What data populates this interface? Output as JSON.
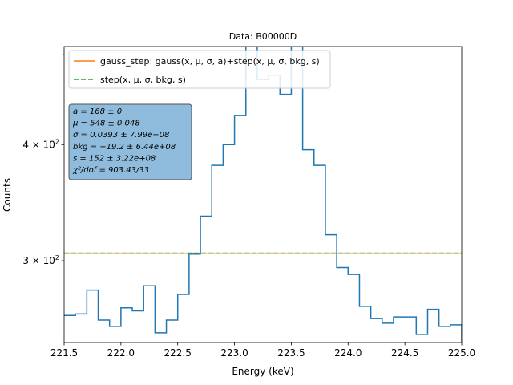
{
  "chart_data": {
    "type": "line",
    "title": "Data: B00000D",
    "xlabel": "Energy (keV)",
    "ylabel": "Counts",
    "y_scale": "log",
    "xlim": [
      221.5,
      225.0
    ],
    "ylim": [
      245,
      510
    ],
    "x_ticks": [
      {
        "value": 221.5,
        "label": "221.5"
      },
      {
        "value": 222.0,
        "label": "222.0"
      },
      {
        "value": 222.5,
        "label": "222.5"
      },
      {
        "value": 223.0,
        "label": "223.0"
      },
      {
        "value": 223.5,
        "label": "223.5"
      },
      {
        "value": 224.0,
        "label": "224.0"
      },
      {
        "value": 224.5,
        "label": "224.5"
      },
      {
        "value": 225.0,
        "label": "225.0"
      }
    ],
    "y_ticks": [
      {
        "value": 300,
        "base": "3",
        "exp": "2"
      },
      {
        "value": 400,
        "base": "4",
        "exp": "2"
      }
    ],
    "y_minor_ticks": [
      500
    ],
    "histogram": {
      "name": "Data",
      "color": "#1f77b4",
      "bin_width": 0.1,
      "x_start": 221.5,
      "counts": [
        262,
        263,
        279,
        259,
        255,
        267,
        265,
        282,
        251,
        259,
        276,
        305,
        335,
        380,
        400,
        430,
        550,
        470,
        475,
        453,
        555,
        395,
        380,
        320,
        295,
        290,
        268,
        260,
        257,
        261,
        261,
        250,
        266,
        255,
        256,
        240
      ]
    },
    "series": [
      {
        "name": "gauss_step",
        "color": "#ff7f0e",
        "style": "solid",
        "y": 305.7
      },
      {
        "name": "step",
        "color": "#2ca02c",
        "style": "dashed",
        "y": 305.7
      }
    ],
    "legend": {
      "position": "upper left",
      "entries": [
        {
          "color": "#ff7f0e",
          "style": "solid",
          "label": "gauss_step: gauss(x, μ, σ, a)+step(x, μ, σ, bkg, s)"
        },
        {
          "color": "#2ca02c",
          "style": "dashed",
          "label": "step(x, μ, σ, bkg, s)"
        }
      ]
    },
    "stats_box": {
      "background": "#8fbcdc",
      "lines": [
        "a = 168 ± 0",
        "μ = 548 ± 0.048",
        "σ = 0.0393 ± 7.99e−08",
        "bkg = −19.2 ± 6.44e+08",
        "s = 152 ± 3.22e+08",
        "χ²/dof = 903.43/33"
      ]
    }
  }
}
